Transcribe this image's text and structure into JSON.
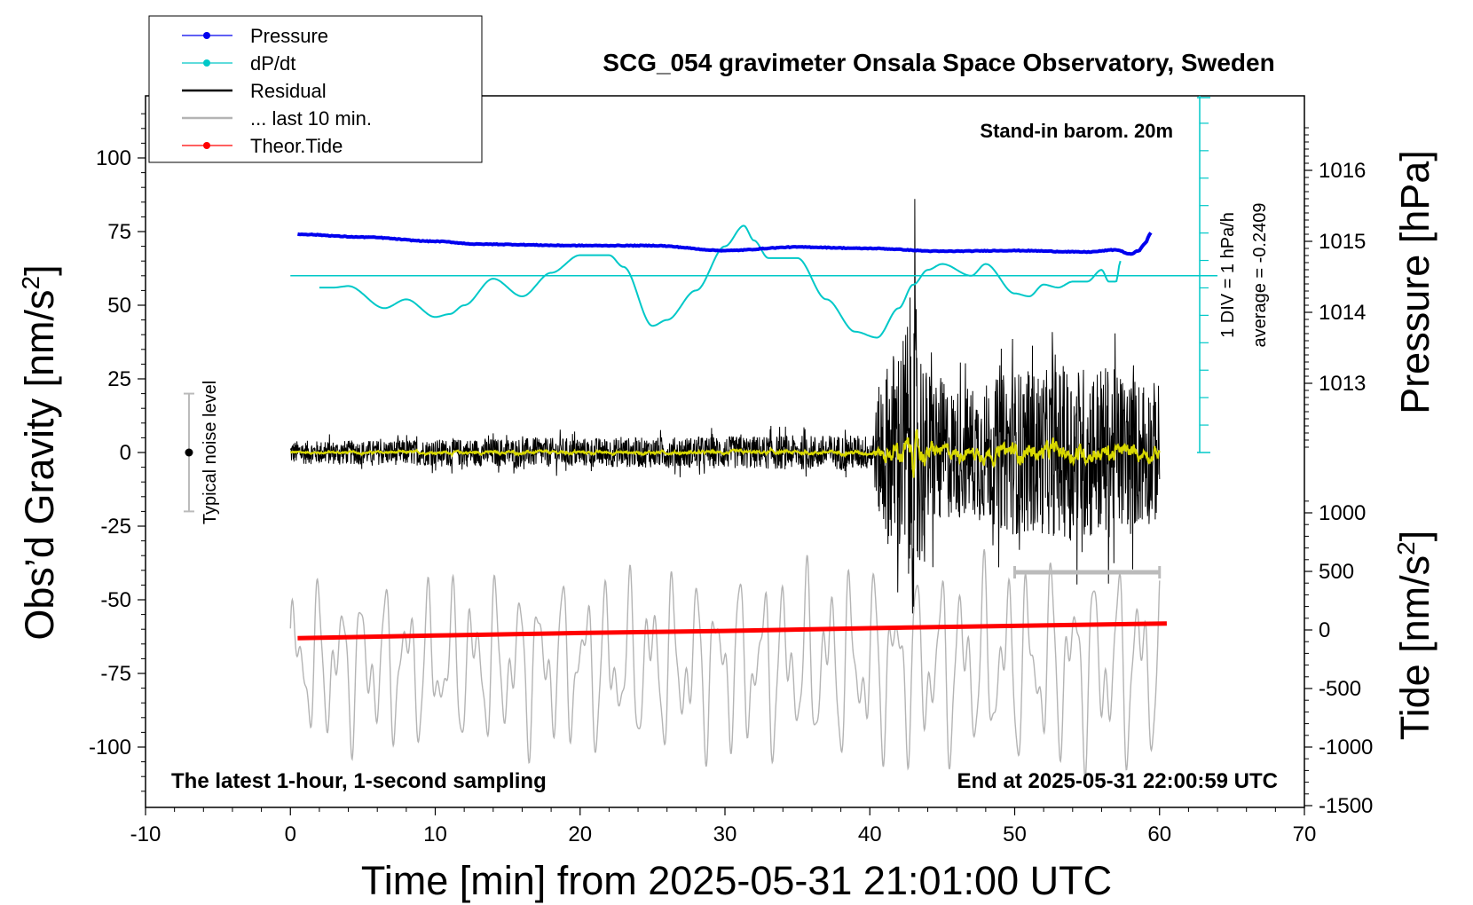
{
  "chart_data": {
    "type": "line",
    "title": "SCG_054 gravimeter Onsala Space Observatory, Sweden",
    "xlabel": "Time [min] from 2025-05-31 21:01:00 UTC",
    "ylabel_left": "Obs’d Gravity [nm/s",
    "ylabel_right_top": "Pressure [hPa]",
    "ylabel_right_bottom": "Tide [nm/s",
    "superscript": "2",
    "xlim": [
      -10,
      70
    ],
    "ylim_left": [
      -120,
      120
    ],
    "ylim_pressure": [
      1012.0,
      1016.7
    ],
    "ylim_tide": [
      -1500,
      1000
    ],
    "x_ticks": [
      "-10",
      "0",
      "10",
      "20",
      "30",
      "40",
      "50",
      "60",
      "70"
    ],
    "y_ticks_left": [
      "100",
      "75",
      "50",
      "25",
      "0",
      "-25",
      "-50",
      "-75",
      "-100"
    ],
    "y_ticks_pressure": [
      "1016",
      "1015",
      "1014",
      "1013"
    ],
    "y_ticks_tide": [
      "1000",
      "500",
      "0",
      "-500",
      "-1000",
      "-1500"
    ],
    "grid": false,
    "legend_position": "top-left",
    "legend": [
      {
        "label": "Pressure",
        "color": "#0000ee"
      },
      {
        "label": "dP/dt",
        "color": "#00c8c8"
      },
      {
        "label": "Residual",
        "color": "#000000"
      },
      {
        "label": "... last 10 min.",
        "color": "#b4b4b4"
      },
      {
        "label": "Theor.Tide",
        "color": "#ff0000"
      }
    ],
    "annotations": {
      "stand_in": "Stand-in barom. 20m",
      "div_label": "1 DIV = 1 hPa/h",
      "average_label": "average = -0.2409",
      "noise_label": "Typical noise level",
      "bottom_left": "The latest 1-hour, 1-second sampling",
      "bottom_right": "End at 2025-05-31 22:00:59 UTC"
    },
    "dpdt_scale": {
      "average": -0.2409,
      "div": 1,
      "div_unit": "hPa/h",
      "zero_level_gravity": 60,
      "bottom_level_gravity": 0
    },
    "noise_bar": {
      "x": -7,
      "center": 0,
      "low": -20,
      "high": 20
    },
    "last10_marker": {
      "x_start": 50,
      "x_end": 60
    },
    "series": [
      {
        "name": "Pressure",
        "axis": "pressure",
        "color": "#0000ee",
        "x": [
          0.5,
          5,
          10,
          13,
          20,
          25,
          30,
          35,
          40,
          45,
          50,
          55,
          57,
          58,
          58.5,
          59,
          59.4
        ],
        "values": [
          1015.1,
          1015.06,
          1015.0,
          1014.96,
          1014.94,
          1014.94,
          1014.87,
          1014.92,
          1014.9,
          1014.86,
          1014.87,
          1014.85,
          1014.88,
          1014.82,
          1014.86,
          1014.97,
          1015.12
        ]
      },
      {
        "name": "dP/dt",
        "axis": "gravity",
        "color": "#00c8c8",
        "x": [
          2,
          3,
          4,
          6.5,
          8,
          10,
          11,
          12,
          14,
          16,
          18,
          20,
          22,
          23,
          25,
          26,
          28,
          30,
          31.3,
          32,
          33,
          35,
          37,
          39,
          40.5,
          42,
          43,
          44,
          45,
          47,
          48,
          50,
          51,
          52,
          53,
          54,
          55,
          56,
          56.5,
          57,
          57.3
        ],
        "values": [
          56,
          56,
          56.5,
          49,
          52,
          46,
          47,
          50,
          59,
          53,
          61,
          67,
          67,
          63,
          43,
          45,
          55,
          70,
          77,
          72,
          66,
          66,
          52,
          41,
          39,
          49,
          57,
          62,
          64,
          60,
          64,
          54,
          53,
          57,
          56,
          58,
          58,
          62,
          58,
          58,
          65
        ]
      },
      {
        "name": "Residual",
        "axis": "gravity",
        "color": "#000000",
        "x": [
          0,
          20,
          40,
          41,
          42,
          43,
          44,
          46,
          48,
          50,
          52,
          54,
          56,
          58,
          60
        ],
        "values": [
          0,
          0,
          0,
          0,
          0,
          0,
          0,
          0,
          0,
          0,
          0,
          0,
          0,
          0,
          0
        ],
        "envelope": [
          4,
          5,
          6,
          30,
          38,
          55,
          28,
          22,
          24,
          28,
          28,
          30,
          30,
          26,
          24
        ]
      },
      {
        "name": "... last 10 min.",
        "axis": "gravity",
        "color": "#b4b4b4",
        "x": [
          0,
          60
        ],
        "values": [
          -72,
          -72
        ],
        "amplitude": [
          24,
          30
        ]
      },
      {
        "name": "Theor.Tide",
        "axis": "tide",
        "color": "#ff0000",
        "x": [
          0.5,
          10,
          20,
          30,
          40,
          50,
          60.5
        ],
        "values": [
          -70,
          -48,
          -26,
          -8,
          15,
          35,
          55
        ]
      }
    ]
  }
}
